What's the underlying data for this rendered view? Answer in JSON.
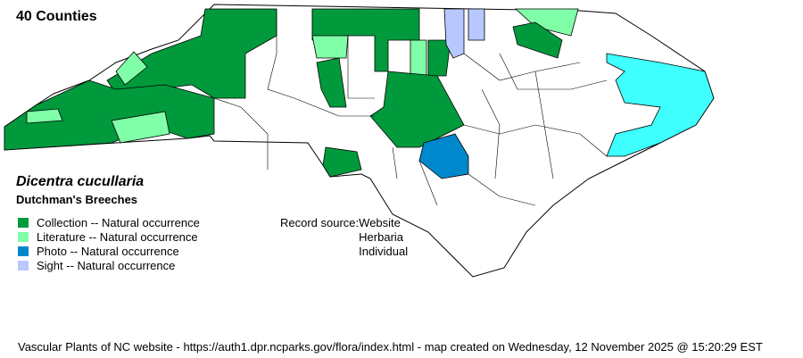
{
  "count_label": "40 Counties",
  "species": {
    "scientific_name": "Dicentra cucullaria",
    "common_name": "Dutchman's Breeches"
  },
  "legend": [
    {
      "label": "Collection -- Natural occurrence",
      "color": "#009a3c"
    },
    {
      "label": "Literature -- Natural occurrence",
      "color": "#80ffa8"
    },
    {
      "label": "Photo -- Natural occurrence",
      "color": "#0088cc"
    },
    {
      "label": "Sight -- Natural occurrence",
      "color": "#b8c8ff"
    }
  ],
  "record_source": {
    "label": "Record source:",
    "values": [
      "Website",
      "Herbaria",
      "Individual"
    ]
  },
  "water_color": "#40ffff",
  "footer": "Vascular Plants of NC website - https://auth1.dpr.ncparks.gov/flora/index.html - map created on Wednesday, 12 November 2025 @ 15:20:29 EST"
}
